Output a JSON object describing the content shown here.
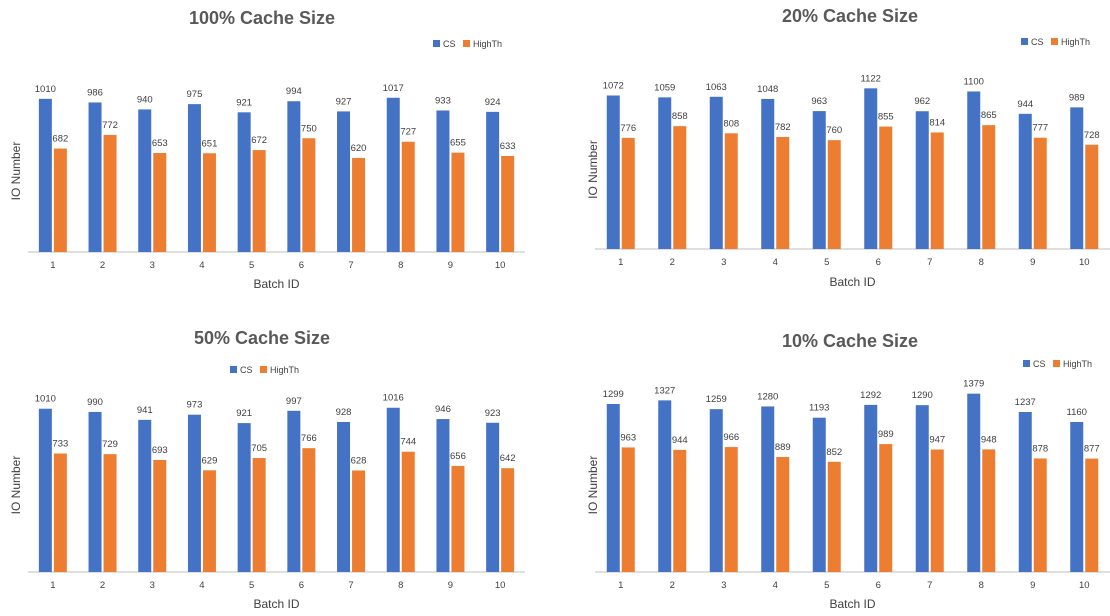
{
  "colors": {
    "cs": "#4472C4",
    "highth": "#ED7D31",
    "axis": "#BFBFBF"
  },
  "chart_data": [
    {
      "type": "bar",
      "title": "100% Cache Size",
      "xlabel": "Batch ID",
      "ylabel": "IO Number",
      "categories": [
        "1",
        "2",
        "3",
        "4",
        "5",
        "6",
        "7",
        "8",
        "9",
        "10"
      ],
      "series": [
        {
          "name": "CS",
          "values": [
            1010,
            986,
            940,
            975,
            921,
            994,
            927,
            1017,
            933,
            924
          ]
        },
        {
          "name": "HighTh",
          "values": [
            682,
            772,
            653,
            651,
            672,
            750,
            620,
            727,
            655,
            633
          ]
        }
      ],
      "ylim": [
        0,
        1200
      ],
      "legend": "top-right",
      "grid": false
    },
    {
      "type": "bar",
      "title": "20% Cache Size",
      "xlabel": "Batch ID",
      "ylabel": "IO Number",
      "categories": [
        "1",
        "2",
        "3",
        "4",
        "5",
        "6",
        "7",
        "8",
        "9",
        "10"
      ],
      "series": [
        {
          "name": "CS",
          "values": [
            1072,
            1059,
            1063,
            1048,
            963,
            1122,
            962,
            1100,
            944,
            989
          ]
        },
        {
          "name": "HighTh",
          "values": [
            776,
            858,
            808,
            782,
            760,
            855,
            814,
            865,
            777,
            728
          ]
        }
      ],
      "ylim": [
        0,
        1250
      ],
      "legend": "top-right",
      "grid": false
    },
    {
      "type": "bar",
      "title": "50% Cache Size",
      "xlabel": "Batch ID",
      "ylabel": "IO Number",
      "categories": [
        "1",
        "2",
        "3",
        "4",
        "5",
        "6",
        "7",
        "8",
        "9",
        "10"
      ],
      "series": [
        {
          "name": "CS",
          "values": [
            1010,
            990,
            941,
            973,
            921,
            997,
            928,
            1016,
            946,
            923
          ]
        },
        {
          "name": "HighTh",
          "values": [
            733,
            729,
            693,
            629,
            705,
            766,
            628,
            744,
            656,
            642
          ]
        }
      ],
      "ylim": [
        0,
        1200
      ],
      "legend": "top-center",
      "grid": false
    },
    {
      "type": "bar",
      "title": "10% Cache Size",
      "xlabel": "Batch ID",
      "ylabel": "IO Number",
      "categories": [
        "1",
        "2",
        "3",
        "4",
        "5",
        "6",
        "7",
        "8",
        "9",
        "10"
      ],
      "series": [
        {
          "name": "CS",
          "values": [
            1299,
            1327,
            1259,
            1280,
            1193,
            1292,
            1290,
            1379,
            1237,
            1160
          ]
        },
        {
          "name": "HighTh",
          "values": [
            963,
            944,
            966,
            889,
            852,
            989,
            947,
            948,
            878,
            877
          ]
        }
      ],
      "ylim": [
        0,
        1500
      ],
      "legend": "top-right",
      "grid": false
    }
  ]
}
